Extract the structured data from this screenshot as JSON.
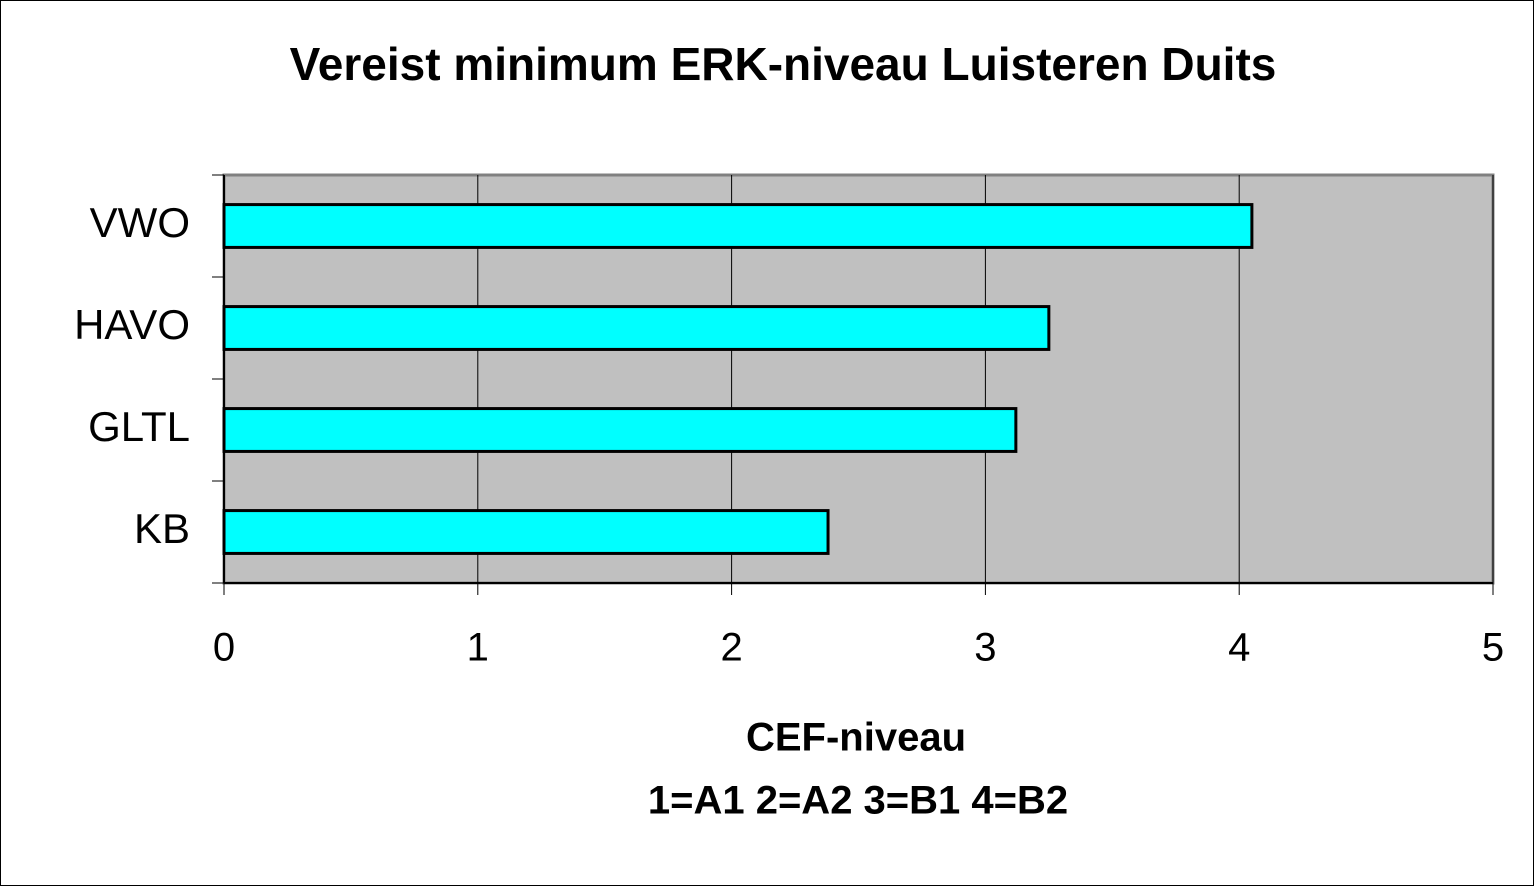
{
  "chart_data": {
    "type": "bar",
    "orientation": "horizontal",
    "title": "Vereist minimum ERK-niveau Luisteren Duits",
    "x_label": [
      "CEF-niveau",
      "1=A1  2=A2  3=B1  4=B2"
    ],
    "categories": [
      "VWO",
      "HAVO",
      "GLTL",
      "KB"
    ],
    "values": [
      4.05,
      3.25,
      3.12,
      2.38
    ],
    "color": "#00ffff",
    "xlim": [
      0,
      5
    ],
    "xticks": [
      0,
      1,
      2,
      3,
      4,
      5
    ],
    "grid": true
  }
}
